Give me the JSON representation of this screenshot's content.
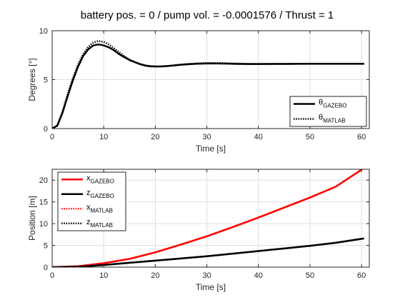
{
  "title": "battery pos. = 0 / pump vol. = -0.0001576 / Thrust = 1",
  "chart_data": [
    {
      "type": "line",
      "xlabel": "Time [s]",
      "ylabel": "Degrees [°]",
      "xlim": [
        0,
        61.5
      ],
      "ylim": [
        0,
        10
      ],
      "xticks": [
        0,
        10,
        20,
        30,
        40,
        50,
        60
      ],
      "yticks": [
        0,
        5,
        10
      ],
      "grid": true,
      "legend_position": "bottom-right",
      "series": [
        {
          "name": "θ",
          "name_sub": "GAZEBO",
          "color": "#000000",
          "style": "solid",
          "x": [
            0,
            1,
            2,
            3,
            4,
            5,
            6,
            7,
            8,
            9,
            10,
            11,
            12,
            13,
            14,
            15,
            16,
            17,
            18,
            19,
            20,
            21,
            22,
            23,
            24,
            25,
            26,
            28,
            30,
            32,
            34,
            36,
            38,
            40,
            45,
            50,
            55,
            60.5
          ],
          "y": [
            0,
            0.3,
            1.6,
            3.3,
            4.9,
            6.3,
            7.4,
            8.1,
            8.5,
            8.6,
            8.5,
            8.3,
            8.0,
            7.6,
            7.3,
            7.0,
            6.8,
            6.6,
            6.45,
            6.38,
            6.35,
            6.35,
            6.38,
            6.42,
            6.47,
            6.52,
            6.56,
            6.62,
            6.65,
            6.65,
            6.63,
            6.61,
            6.6,
            6.6,
            6.61,
            6.62,
            6.62,
            6.62
          ]
        },
        {
          "name": "θ",
          "name_sub": "MATLAB",
          "color": "#000000",
          "style": "dotted",
          "x": [
            0,
            1,
            2,
            3,
            4,
            5,
            6,
            7,
            8,
            9,
            10,
            11,
            12,
            13,
            14,
            15,
            16,
            17,
            18,
            19,
            20,
            21,
            22,
            23,
            24,
            25,
            26,
            28,
            30,
            32,
            34,
            36,
            38,
            40,
            45,
            50,
            55,
            60.5
          ],
          "y": [
            0,
            0.3,
            1.7,
            3.5,
            5.1,
            6.5,
            7.6,
            8.35,
            8.8,
            8.95,
            8.85,
            8.6,
            8.2,
            7.8,
            7.4,
            7.05,
            6.78,
            6.58,
            6.43,
            6.35,
            6.33,
            6.34,
            6.37,
            6.42,
            6.48,
            6.54,
            6.59,
            6.66,
            6.7,
            6.7,
            6.67,
            6.64,
            6.61,
            6.6,
            6.61,
            6.62,
            6.62,
            6.62
          ]
        }
      ]
    },
    {
      "type": "line",
      "xlabel": "Time [s]",
      "ylabel": "Position [m]",
      "xlim": [
        0,
        61.5
      ],
      "ylim": [
        0,
        22.5
      ],
      "xticks": [
        0,
        10,
        20,
        30,
        40,
        50,
        60
      ],
      "yticks": [
        0,
        5,
        10,
        15,
        20
      ],
      "grid": true,
      "legend_position": "top-left",
      "series": [
        {
          "name": "x",
          "name_sub": "GAZEBO",
          "color": "#ff0000",
          "style": "solid",
          "x": [
            0,
            5,
            10,
            15,
            20,
            25,
            30,
            35,
            40,
            45,
            50,
            55,
            60.5
          ],
          "y": [
            0,
            0.2,
            0.9,
            1.9,
            3.4,
            5.2,
            7.1,
            9.2,
            11.4,
            13.7,
            16.0,
            18.5,
            22.8
          ]
        },
        {
          "name": "z",
          "name_sub": "GAZEBO",
          "color": "#000000",
          "style": "solid",
          "x": [
            0,
            5,
            10,
            15,
            20,
            25,
            30,
            35,
            40,
            45,
            50,
            55,
            60.5
          ],
          "y": [
            0,
            0.1,
            0.5,
            1.0,
            1.5,
            2.0,
            2.5,
            3.1,
            3.7,
            4.3,
            4.9,
            5.6,
            6.6
          ]
        },
        {
          "name": "x",
          "name_sub": "MATLAB",
          "color": "#ff0000",
          "style": "dotted",
          "x": [
            0,
            5,
            10,
            15,
            20,
            25,
            30,
            35,
            40,
            45,
            50,
            55,
            60.5
          ],
          "y": [
            0,
            0.2,
            0.9,
            1.9,
            3.4,
            5.2,
            7.1,
            9.2,
            11.4,
            13.7,
            16.0,
            18.5,
            22.8
          ]
        },
        {
          "name": "z",
          "name_sub": "MATLAB",
          "color": "#000000",
          "style": "dotted",
          "x": [
            0,
            5,
            10,
            15,
            20,
            25,
            30,
            35,
            40,
            45,
            50,
            55,
            60.5
          ],
          "y": [
            0,
            0.1,
            0.5,
            1.0,
            1.5,
            2.0,
            2.5,
            3.1,
            3.7,
            4.3,
            4.9,
            5.6,
            6.6
          ]
        }
      ]
    }
  ]
}
